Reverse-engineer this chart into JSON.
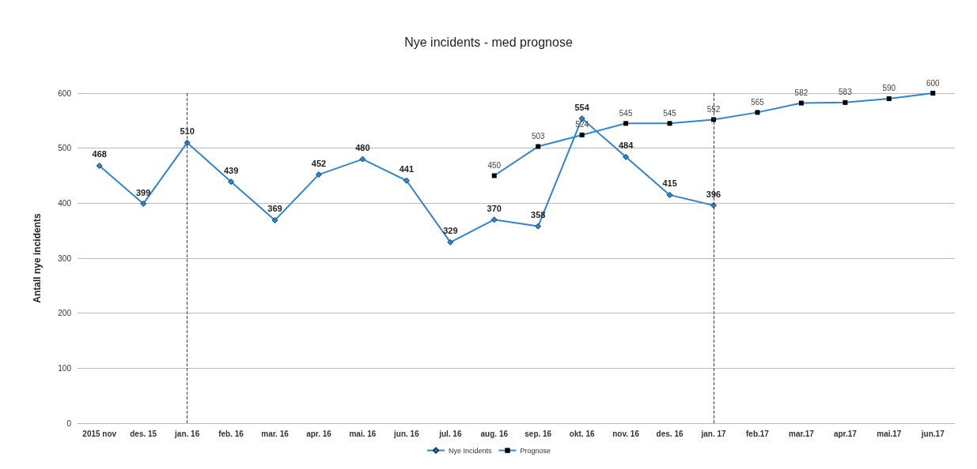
{
  "chart_data": {
    "type": "line",
    "title": "Nye incidents - med prognose",
    "ylabel": "Antall nye incidents",
    "categories": [
      "2015 nov",
      "des. 15",
      "jan. 16",
      "feb. 16",
      "mar. 16",
      "apr. 16",
      "mai. 16",
      "jun. 16",
      "jul. 16",
      "aug. 16",
      "sep. 16",
      "okt. 16",
      "nov. 16",
      "des. 16",
      "jan. 17",
      "feb.17",
      "mar.17",
      "apr.17",
      "mai.17",
      "jun.17"
    ],
    "series": [
      {
        "name": "Nye Incidents",
        "color": "#2e86d0",
        "marker": "diamond",
        "values": [
          468,
          399,
          510,
          439,
          369,
          452,
          480,
          441,
          329,
          370,
          358,
          554,
          484,
          415,
          396,
          null,
          null,
          null,
          null,
          null
        ]
      },
      {
        "name": "Prognose",
        "color": "#2e86d0",
        "marker": "square",
        "values": [
          null,
          null,
          null,
          null,
          null,
          null,
          null,
          null,
          null,
          450,
          503,
          524,
          545,
          545,
          552,
          565,
          582,
          583,
          590,
          600
        ]
      }
    ],
    "ylim": [
      0,
      600
    ],
    "yticks": [
      0,
      100,
      200,
      300,
      400,
      500,
      600
    ],
    "grid": "y",
    "legend": "bottom",
    "data_labels": true,
    "ref_lines": [
      {
        "axis": "x",
        "value": "jan. 16",
        "color": "#404040",
        "line_style": "dashed"
      },
      {
        "axis": "x",
        "value": "jan. 17",
        "color": "#404040",
        "line_style": "dashed"
      }
    ]
  }
}
